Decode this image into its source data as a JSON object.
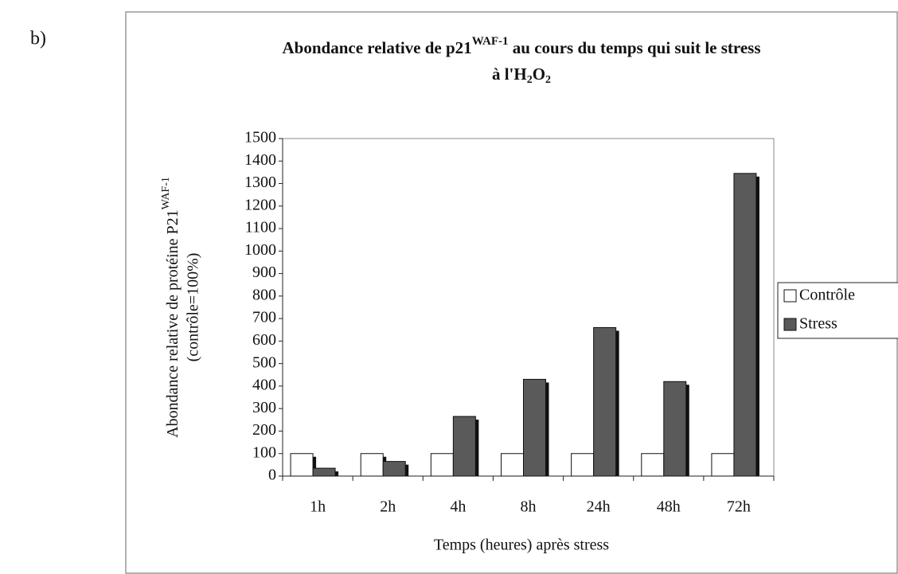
{
  "panel_label": "b)",
  "chart_data": {
    "type": "bar",
    "title": [
      "Abondance relative de p21",
      "WAF-1",
      " au cours du temps qui suit le stress",
      "à l'H",
      "2",
      "O",
      "2"
    ],
    "ylabel": [
      "Abondance relative de protéine P21",
      "WAF-1",
      "(contrôle=100%)"
    ],
    "xlabel": "Temps (heures) après stress",
    "categories": [
      "1h",
      "2h",
      "4h",
      "8h",
      "24h",
      "48h",
      "72h"
    ],
    "series": [
      {
        "name": "Contrôle",
        "color": "#ffffff",
        "values": [
          100,
          100,
          100,
          100,
          100,
          100,
          100
        ]
      },
      {
        "name": "Stress",
        "color": "#5a5a5a",
        "values": [
          35,
          65,
          265,
          430,
          660,
          420,
          1345
        ]
      }
    ],
    "ylim": [
      0,
      1500
    ],
    "yticks": [
      0,
      100,
      200,
      300,
      400,
      500,
      600,
      700,
      800,
      900,
      1000,
      1100,
      1200,
      1300,
      1400,
      1500
    ],
    "grid": false,
    "legend": "right"
  }
}
